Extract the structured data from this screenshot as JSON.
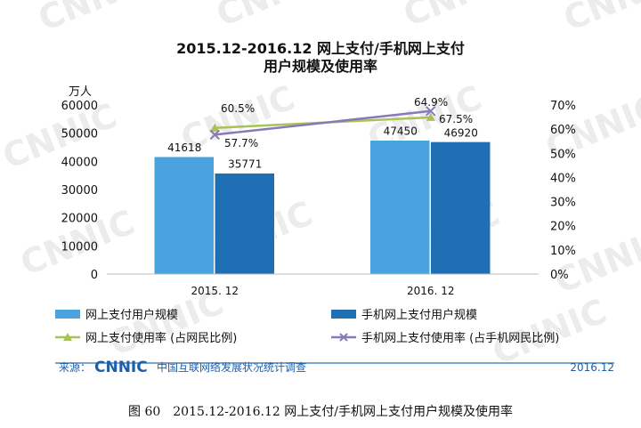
{
  "chart_data": {
    "type": "bar",
    "title_line1": "2015.12-2016.12 网上支付/手机网上支付",
    "title_line2": "用户规模及使用率",
    "ylabel": "万人",
    "categories": [
      "2015. 12",
      "2016. 12"
    ],
    "ylim": [
      0,
      60000
    ],
    "y_ticks": [
      "0",
      "10000",
      "20000",
      "30000",
      "40000",
      "50000",
      "60000"
    ],
    "y2lim": [
      0,
      70
    ],
    "y2_ticks": [
      "0%",
      "10%",
      "20%",
      "30%",
      "40%",
      "50%",
      "60%",
      "70%"
    ],
    "series": [
      {
        "name": "网上支付用户规模",
        "kind": "bar",
        "axis": "left",
        "color": "#4aa3df",
        "values": [
          41618,
          47450
        ],
        "labels": [
          "41618",
          "47450"
        ]
      },
      {
        "name": "手机网上支付用户规模",
        "kind": "bar",
        "axis": "left",
        "color": "#1f6fb5",
        "values": [
          35771,
          46920
        ],
        "labels": [
          "35771",
          "46920"
        ]
      },
      {
        "name": "网上支付使用率 (占网民比例)",
        "kind": "line",
        "axis": "right",
        "color": "#a7c257",
        "marker": "triangle",
        "values": [
          60.5,
          64.9
        ],
        "labels": [
          "60.5%",
          "64.9%"
        ]
      },
      {
        "name": "手机网上支付使用率 (占手机网民比例)",
        "kind": "line",
        "axis": "right",
        "color": "#8a79b8",
        "marker": "x",
        "values": [
          57.7,
          67.5
        ],
        "labels": [
          "57.7%",
          "67.5%"
        ]
      }
    ],
    "legend_position": "bottom",
    "grid": false
  },
  "watermark": "CNNIC",
  "source": {
    "prefix": "来源：",
    "logo": "CNNIC",
    "org": "中国互联网络发展状况统计调查",
    "date": "2016.12"
  },
  "caption": "图 60　2015.12-2016.12 网上支付/手机网上支付用户规模及使用率"
}
